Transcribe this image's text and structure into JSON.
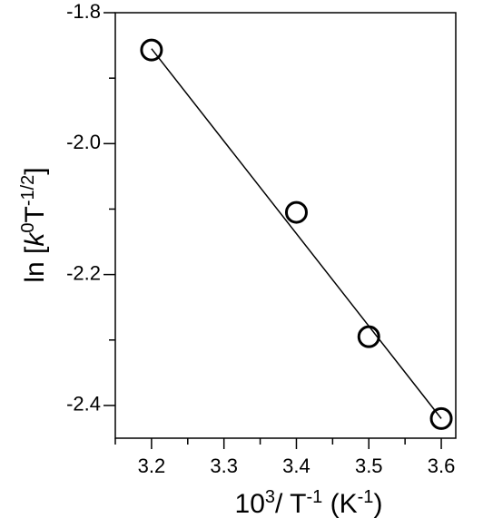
{
  "chart_data": {
    "type": "scatter",
    "xlabel": [
      {
        "text": "10"
      },
      {
        "sup": "3"
      },
      {
        "text": "/ T"
      },
      {
        "sup": "-1"
      },
      {
        "text": " (K"
      },
      {
        "sup": "-1"
      },
      {
        "text": ")"
      }
    ],
    "ylabel": [
      {
        "text": "ln ["
      },
      {
        "italic": "k"
      },
      {
        "sup": "0"
      },
      {
        "text": "T"
      },
      {
        "sup": "-1/2"
      },
      {
        "text": "]"
      }
    ],
    "xlim": [
      3.15,
      3.62
    ],
    "xticks": [
      3.2,
      3.3,
      3.4,
      3.5,
      3.6
    ],
    "xminor_ticks": [
      3.15,
      3.25,
      3.35,
      3.45,
      3.55
    ],
    "ylim": [
      -2.45,
      -1.8
    ],
    "yticks": [
      -1.8,
      {
        "value": -2,
        "label": "-2.0"
      },
      -2.2,
      -2.4
    ],
    "yminor_ticks": [
      -1.9,
      -2.1,
      -2.3
    ],
    "series": [
      {
        "x": [
          3.2,
          3.4,
          3.5,
          3.6
        ],
        "values": [
          -1.857,
          -2.105,
          -2.295,
          -2.42
        ],
        "color": "#000000",
        "marker": "open-circle"
      },
      {
        "x": [
          3.2,
          3.6
        ],
        "values": [
          -1.855,
          -2.42
        ],
        "color": "#000000",
        "marker": "line"
      }
    ]
  }
}
